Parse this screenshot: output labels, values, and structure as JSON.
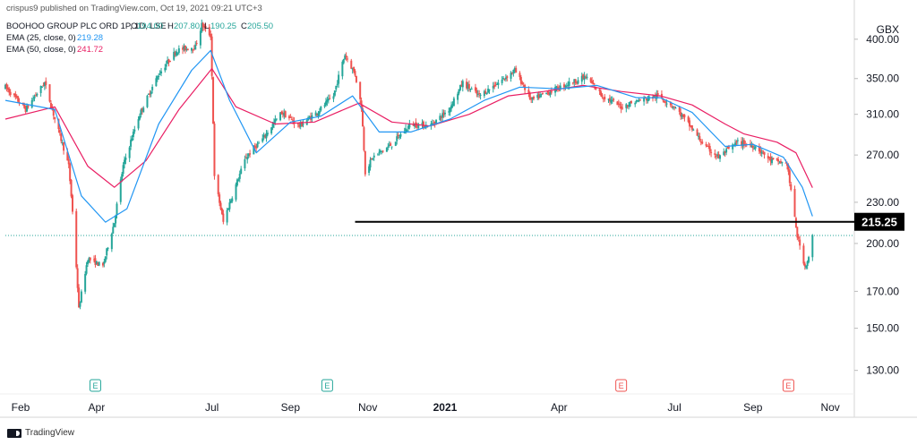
{
  "header": {
    "published": "crispus9 published on TradingView.com, Oct 19, 2021 09:21 UTC+3"
  },
  "legend": {
    "symbol_line": "BOOHOO GROUP PLC ORD 1P, 1D, LSE",
    "ohlc": [
      {
        "k": "O",
        "v": "194.00"
      },
      {
        "k": "H",
        "v": "207.80"
      },
      {
        "k": "L",
        "v": "190.25"
      },
      {
        "k": "C",
        "v": "205.50"
      }
    ],
    "ema25_label": "EMA (25, close, 0)",
    "ema25_value": "219.28",
    "ema50_label": "EMA (50, close, 0)",
    "ema50_value": "241.72"
  },
  "currency": "GBX",
  "footer": {
    "brand": "TradingView"
  },
  "colors": {
    "up": "#26a69a",
    "down": "#ef5350",
    "ema25": "#2196f3",
    "ema50": "#e91e63",
    "support": "#000000",
    "price_line": "#26a69a",
    "earnings": "#ef5350",
    "event": "#26a69a"
  },
  "chart_data": {
    "type": "candlestick",
    "y_axis": {
      "scale": "log",
      "ylim": [
        120,
        430
      ],
      "ticks": [
        "400.00",
        "350.00",
        "310.00",
        "270.00",
        "230.00",
        "200.00",
        "170.00",
        "150.00",
        "130.00"
      ]
    },
    "x_axis": {
      "range": [
        "2020-01-20",
        "2021-11-20"
      ],
      "ticks": [
        {
          "label": "Feb",
          "date": "2020-02-01"
        },
        {
          "label": "Apr",
          "date": "2020-04-01"
        },
        {
          "label": "Jul",
          "date": "2020-07-01"
        },
        {
          "label": "Sep",
          "date": "2020-09-01"
        },
        {
          "label": "Nov",
          "date": "2020-11-01"
        },
        {
          "label": "2021",
          "date": "2021-01-01",
          "bold": true
        },
        {
          "label": "Apr",
          "date": "2021-04-01"
        },
        {
          "label": "Jul",
          "date": "2021-07-01"
        },
        {
          "label": "Sep",
          "date": "2021-09-01"
        },
        {
          "label": "Nov",
          "date": "2021-11-01"
        }
      ]
    },
    "price_path": [
      [
        "2020-01-20",
        340
      ],
      [
        "2020-02-05",
        315
      ],
      [
        "2020-02-20",
        345
      ],
      [
        "2020-02-28",
        305
      ],
      [
        "2020-03-10",
        260
      ],
      [
        "2020-03-18",
        160
      ],
      [
        "2020-03-25",
        190
      ],
      [
        "2020-04-06",
        185
      ],
      [
        "2020-04-15",
        215
      ],
      [
        "2020-04-22",
        260
      ],
      [
        "2020-05-05",
        310
      ],
      [
        "2020-05-20",
        355
      ],
      [
        "2020-06-03",
        385
      ],
      [
        "2020-06-18",
        390
      ],
      [
        "2020-06-23",
        420
      ],
      [
        "2020-06-30",
        405
      ],
      [
        "2020-07-03",
        250
      ],
      [
        "2020-07-10",
        215
      ],
      [
        "2020-07-17",
        235
      ],
      [
        "2020-07-28",
        268
      ],
      [
        "2020-08-10",
        285
      ],
      [
        "2020-08-25",
        312
      ],
      [
        "2020-09-08",
        298
      ],
      [
        "2020-09-22",
        312
      ],
      [
        "2020-10-05",
        330
      ],
      [
        "2020-10-14",
        380
      ],
      [
        "2020-10-22",
        355
      ],
      [
        "2020-10-27",
        318
      ],
      [
        "2020-10-30",
        255
      ],
      [
        "2020-11-05",
        268
      ],
      [
        "2020-11-20",
        280
      ],
      [
        "2020-12-05",
        300
      ],
      [
        "2020-12-20",
        298
      ],
      [
        "2021-01-04",
        315
      ],
      [
        "2021-01-15",
        345
      ],
      [
        "2021-01-28",
        330
      ],
      [
        "2021-02-12",
        345
      ],
      [
        "2021-02-25",
        360
      ],
      [
        "2021-03-10",
        325
      ],
      [
        "2021-03-25",
        335
      ],
      [
        "2021-04-10",
        345
      ],
      [
        "2021-04-22",
        352
      ],
      [
        "2021-05-05",
        330
      ],
      [
        "2021-05-20",
        318
      ],
      [
        "2021-06-03",
        325
      ],
      [
        "2021-06-18",
        330
      ],
      [
        "2021-07-01",
        318
      ],
      [
        "2021-07-12",
        300
      ],
      [
        "2021-07-25",
        278
      ],
      [
        "2021-08-05",
        268
      ],
      [
        "2021-08-20",
        282
      ],
      [
        "2021-09-03",
        278
      ],
      [
        "2021-09-15",
        265
      ],
      [
        "2021-09-28",
        262
      ],
      [
        "2021-10-01",
        238
      ],
      [
        "2021-10-06",
        205
      ],
      [
        "2021-10-12",
        185
      ],
      [
        "2021-10-15",
        190
      ],
      [
        "2021-10-18",
        205.5
      ]
    ],
    "ema25": [
      [
        "2020-01-20",
        325
      ],
      [
        "2020-02-28",
        315
      ],
      [
        "2020-03-20",
        235
      ],
      [
        "2020-04-08",
        215
      ],
      [
        "2020-04-25",
        225
      ],
      [
        "2020-05-20",
        300
      ],
      [
        "2020-06-15",
        360
      ],
      [
        "2020-06-30",
        385
      ],
      [
        "2020-07-15",
        325
      ],
      [
        "2020-08-05",
        272
      ],
      [
        "2020-09-01",
        302
      ],
      [
        "2020-09-25",
        308
      ],
      [
        "2020-10-20",
        330
      ],
      [
        "2020-11-10",
        292
      ],
      [
        "2020-12-05",
        292
      ],
      [
        "2021-01-05",
        305
      ],
      [
        "2021-02-01",
        325
      ],
      [
        "2021-03-01",
        340
      ],
      [
        "2021-04-01",
        338
      ],
      [
        "2021-05-01",
        342
      ],
      [
        "2021-06-01",
        328
      ],
      [
        "2021-06-20",
        328
      ],
      [
        "2021-07-15",
        312
      ],
      [
        "2021-08-10",
        278
      ],
      [
        "2021-09-01",
        280
      ],
      [
        "2021-09-25",
        268
      ],
      [
        "2021-10-10",
        242
      ],
      [
        "2021-10-18",
        219.28
      ]
    ],
    "ema50": [
      [
        "2020-01-20",
        305
      ],
      [
        "2020-02-28",
        318
      ],
      [
        "2020-03-25",
        260
      ],
      [
        "2020-04-15",
        242
      ],
      [
        "2020-05-10",
        265
      ],
      [
        "2020-06-05",
        315
      ],
      [
        "2020-07-01",
        362
      ],
      [
        "2020-07-20",
        318
      ],
      [
        "2020-08-20",
        300
      ],
      [
        "2020-09-20",
        302
      ],
      [
        "2020-10-25",
        322
      ],
      [
        "2020-11-20",
        302
      ],
      [
        "2020-12-20",
        298
      ],
      [
        "2021-01-20",
        310
      ],
      [
        "2021-02-20",
        330
      ],
      [
        "2021-03-20",
        335
      ],
      [
        "2021-04-20",
        342
      ],
      [
        "2021-05-20",
        335
      ],
      [
        "2021-06-20",
        330
      ],
      [
        "2021-07-15",
        320
      ],
      [
        "2021-08-10",
        300
      ],
      [
        "2021-08-25",
        290
      ],
      [
        "2021-09-20",
        282
      ],
      [
        "2021-10-05",
        272
      ],
      [
        "2021-10-18",
        241.72
      ]
    ],
    "support_line": {
      "value": 215.25,
      "label": "215.25",
      "from": "2020-10-22"
    },
    "last_price": 205.5,
    "markers": [
      {
        "date": "2020-03-31",
        "label": "E",
        "kind": "event"
      },
      {
        "date": "2020-09-30",
        "label": "E",
        "kind": "event"
      },
      {
        "date": "2021-05-20",
        "label": "E",
        "kind": "earnings"
      },
      {
        "date": "2021-09-29",
        "label": "E",
        "kind": "earnings"
      }
    ]
  }
}
